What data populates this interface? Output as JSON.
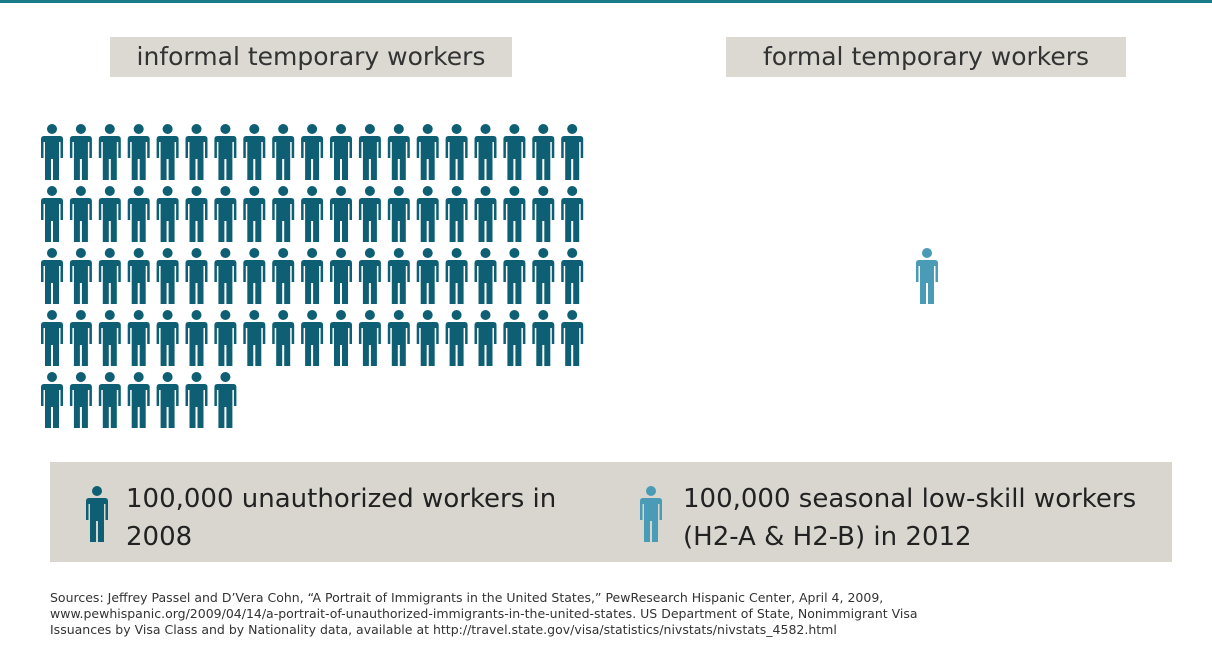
{
  "chart_data": {
    "type": "pictogram",
    "categories": [
      "informal temporary workers",
      "formal temporary workers"
    ],
    "values": [
      83,
      1
    ],
    "colors": [
      "#0e5f73",
      "#4a9bb5"
    ],
    "legend": [
      "100,000 unauthorized workers in 2008",
      "100,000 seasonal low-skill workers (H2-A & H2-B) in 2012"
    ],
    "sources": [
      "Sources: Jeffrey Passel and D’Vera Cohn, “A Portrait of Immigrants in the United States,” PewResearch Hispanic Center, April 4, 2009,",
      "www.pewhispanic.org/2009/04/14/a-portrait-of-unauthorized-immigrants-in-the-united-states. US Department of State, Nonimmigrant Visa",
      "Issuances by Visa Class and by Nationality data, available at http://travel.state.gov/visa/statistics/nivstats/nivstats_4582.html"
    ]
  }
}
